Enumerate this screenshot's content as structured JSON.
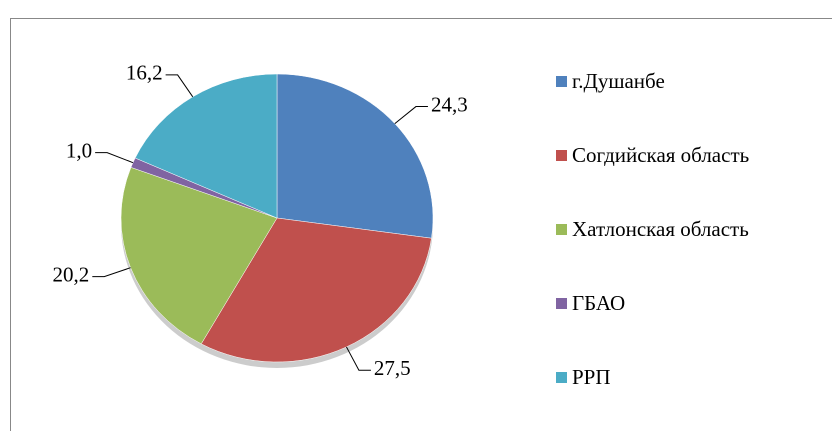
{
  "chart_data": {
    "type": "pie",
    "categories": [
      "г.Душанбе",
      "Согдийская область",
      "Хатлонская область",
      "ГБАО",
      "РРП"
    ],
    "values": [
      24.3,
      27.5,
      20.2,
      1.0,
      16.2
    ],
    "value_labels": [
      "24,3",
      "27,5",
      "20,2",
      "1,0",
      "16,2"
    ],
    "colors": [
      "#4f81bd",
      "#c0504d",
      "#9bbb59",
      "#8064a2",
      "#4bacc6"
    ],
    "legend": "right"
  }
}
